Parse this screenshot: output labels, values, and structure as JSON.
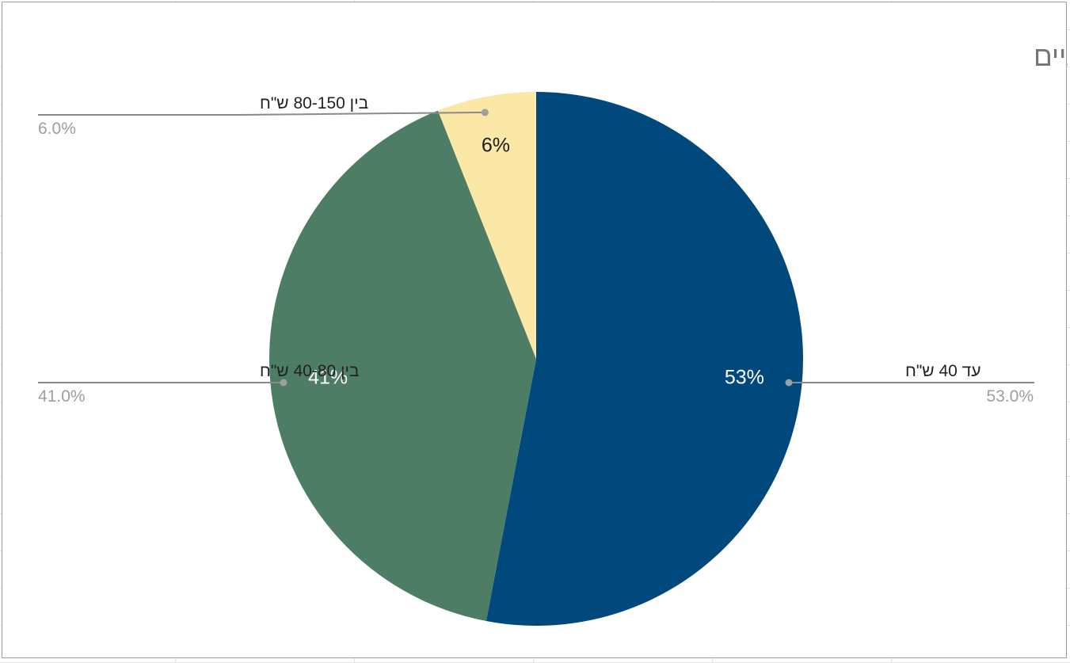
{
  "chart_data": {
    "type": "pie",
    "title": "כמה אתם משקיעים בגרביים",
    "slices": [
      {
        "name": "עד 40 ש\"ח",
        "value": 53.0,
        "inner_label": "53%",
        "outer_label": "53.0%",
        "color": "#01497c",
        "label_color": "#ffffff",
        "side": "right"
      },
      {
        "name": "בין 40-80 ש\"ח",
        "value": 41.0,
        "inner_label": "41%",
        "outer_label": "41.0%",
        "color": "#4e7d66",
        "label_color": "#ffffff",
        "side": "left"
      },
      {
        "name": "בין 80-150 ש\"ח",
        "value": 6.0,
        "inner_label": "6%",
        "outer_label": "6.0%",
        "color": "#fce8a6",
        "label_color": "#1a1a1a",
        "side": "left"
      }
    ],
    "start": "top",
    "direction": "clockwise",
    "legend": "labeled leader lines"
  }
}
